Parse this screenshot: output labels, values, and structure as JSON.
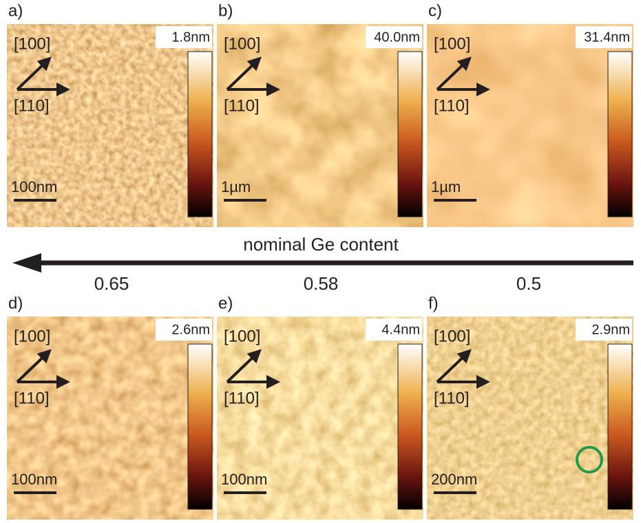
{
  "panels": [
    {
      "label": "a)",
      "direction_1": "[100]",
      "direction_2": "[110]",
      "scale_bar": "100nm",
      "height_max": "1.8nm"
    },
    {
      "label": "b)",
      "direction_1": "[100]",
      "direction_2": "[110]",
      "scale_bar": "1µm",
      "height_max": "40.0nm"
    },
    {
      "label": "c)",
      "direction_1": "[100]",
      "direction_2": "[110]",
      "scale_bar": "1µm",
      "height_max": "31.4nm"
    },
    {
      "label": "d)",
      "direction_1": "[100]",
      "direction_2": "[110]",
      "scale_bar": "100nm",
      "height_max": "2.6nm"
    },
    {
      "label": "e)",
      "direction_1": "[100]",
      "direction_2": "[110]",
      "scale_bar": "100nm",
      "height_max": "4.4nm"
    },
    {
      "label": "f)",
      "direction_1": "[100]",
      "direction_2": "[110]",
      "scale_bar": "200nm",
      "height_max": "2.9nm"
    }
  ],
  "axis": {
    "title": "nominal Ge content",
    "labels": [
      "0.65",
      "0.58",
      "0.5"
    ]
  }
}
